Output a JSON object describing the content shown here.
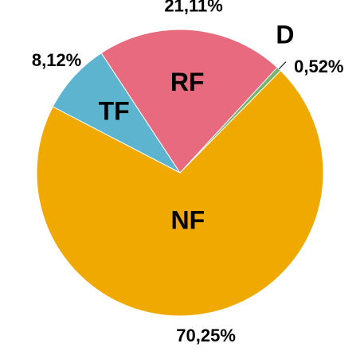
{
  "chart_data": {
    "type": "pie",
    "categories": [
      "D",
      "NF",
      "TF",
      "RF"
    ],
    "values": [
      0.52,
      70.25,
      8.12,
      21.11
    ],
    "value_labels": [
      "0,52%",
      "70,25%",
      "8,12%",
      "21,11%"
    ],
    "colors": [
      "#77b36a",
      "#f0a900",
      "#5db4cf",
      "#e86a7e"
    ]
  }
}
